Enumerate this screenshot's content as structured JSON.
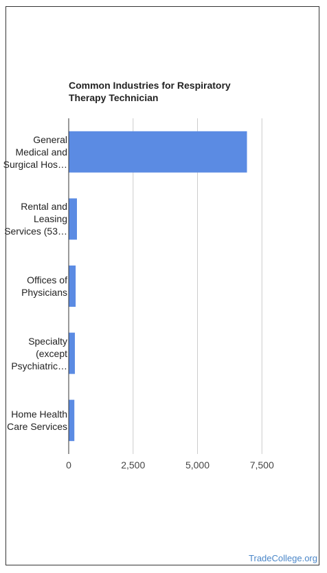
{
  "chart_data": {
    "type": "bar",
    "orientation": "horizontal",
    "title_lines": [
      "Common Industries for Respiratory",
      "Therapy Technician"
    ],
    "categories": [
      [
        "General",
        "Medical and",
        "Surgical Hos…"
      ],
      [
        "Rental and",
        "Leasing",
        "Services (53…"
      ],
      [
        "Offices of",
        "Physicians"
      ],
      [
        "Specialty",
        "(except",
        "Psychiatric…"
      ],
      [
        "Home Health",
        "Care Services"
      ]
    ],
    "values": [
      6920,
      320,
      270,
      240,
      220
    ],
    "xlim": [
      0,
      8000
    ],
    "xticks": [
      {
        "value": 0,
        "label": "0"
      },
      {
        "value": 2500,
        "label": "2,500"
      },
      {
        "value": 5000,
        "label": "5,000"
      },
      {
        "value": 7500,
        "label": "7,500"
      }
    ],
    "grid": true,
    "bar_color": "#5b8be3"
  },
  "footer": {
    "source": "TradeCollege.org"
  }
}
